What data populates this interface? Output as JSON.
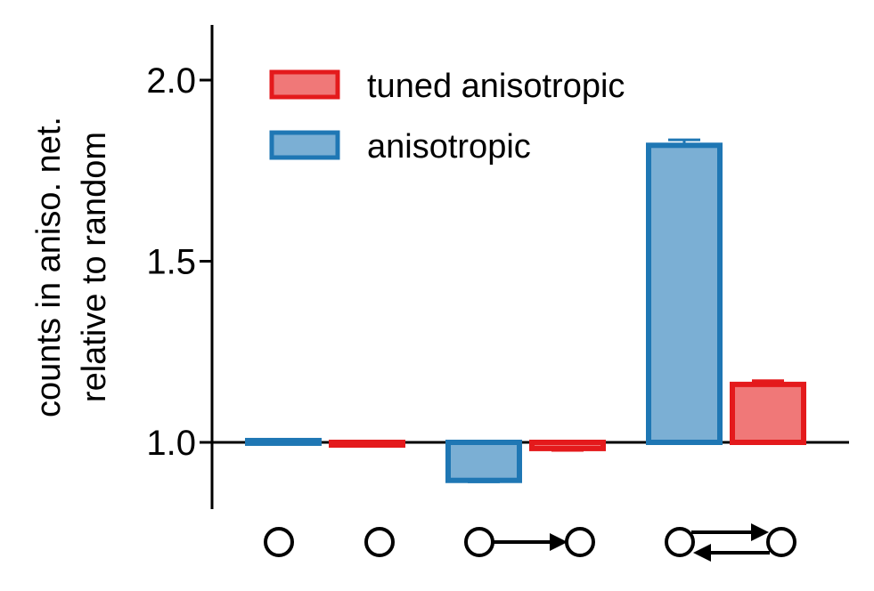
{
  "chart_data": {
    "type": "bar",
    "ylabel": [
      "counts in aniso. net.",
      "relative to random"
    ],
    "ylim": [
      0.82,
      2.15
    ],
    "baseline": 1.0,
    "yticks": [
      {
        "value": 1.0,
        "label": "1.0"
      },
      {
        "value": 1.5,
        "label": "1.5"
      },
      {
        "value": 2.0,
        "label": "2.0"
      }
    ],
    "grid": false,
    "legend_position": "top-left",
    "categories": [
      "single node",
      "two unconnected nodes",
      "one-way connection",
      "reciprocal connection"
    ],
    "category_icons": [
      "single-node-icon",
      "two-unconnected-nodes-icon",
      "one-way-connection-icon",
      "reciprocal-connection-icon"
    ],
    "series": [
      {
        "name": "anisotropic",
        "key": "anisotropic",
        "fill": "#7bafd4",
        "stroke": "#1f77b4",
        "values": [
          1.005,
          null,
          0.895,
          1.82
        ],
        "errors": [
          0.003,
          null,
          0.004,
          0.015
        ]
      },
      {
        "name": "tuned anisotropic",
        "key": "tuned-anisotropic",
        "fill": "#f07878",
        "stroke": "#e41a1c",
        "values": [
          null,
          1.0,
          0.983,
          1.16
        ],
        "errors": [
          null,
          0.003,
          0.005,
          0.01
        ]
      }
    ],
    "legend": [
      {
        "label": "tuned anisotropic",
        "fill": "#f07878",
        "stroke": "#e41a1c"
      },
      {
        "label": "anisotropic",
        "fill": "#7bafd4",
        "stroke": "#1f77b4"
      }
    ]
  }
}
